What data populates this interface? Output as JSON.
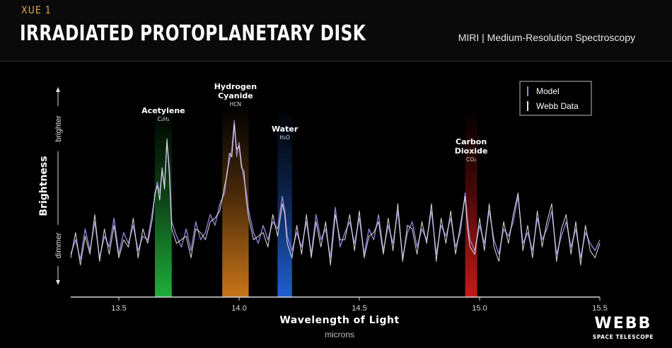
{
  "header": {
    "kicker": "XUE 1",
    "title": "IRRADIATED PROTOPLANETARY DISK",
    "subtitle": "MIRI | Medium-Resolution Spectroscopy"
  },
  "logo": {
    "word": "WEBB",
    "sub": "SPACE TELESCOPE"
  },
  "colors": {
    "background": "#000000",
    "model_line": "#9b82d9",
    "data_line": "#e6e6e6",
    "acetylene_band": "#1fae3a",
    "hcn_band": "#c8741a",
    "water_band": "#1f5fcf",
    "co2_band": "#c71818"
  },
  "chart_data": {
    "type": "line",
    "xlabel": "Wavelength of Light",
    "xunit": "microns",
    "ylabel": "Brightness",
    "y_direction_labels": {
      "top": "brighter",
      "bottom": "dimmer"
    },
    "xlim": [
      13.3,
      15.5
    ],
    "ylim": [
      0,
      1
    ],
    "xticks": [
      13.5,
      14.0,
      14.5,
      15.0,
      15.5
    ],
    "xtick_labels": [
      "13.5",
      "14.0",
      "14.5",
      "15.0",
      "15.5"
    ],
    "grid": false,
    "legend": {
      "position": "top-right",
      "entries": [
        {
          "label": "Model",
          "color": "#9b82d9"
        },
        {
          "label": "Webb Data",
          "color": "#e6e6e6"
        }
      ]
    },
    "bands": [
      {
        "name": "Acetylene",
        "formula": "C₂H₂",
        "x0": 13.65,
        "x1": 13.72,
        "color": "#1fae3a"
      },
      {
        "name": "Hydrogen Cyanide",
        "name_lines": [
          "Hydrogen",
          "Cyanide"
        ],
        "formula": "HCN",
        "x0": 13.93,
        "x1": 14.04,
        "color": "#c8741a"
      },
      {
        "name": "Water",
        "formula": "H₂O",
        "x0": 14.16,
        "x1": 14.22,
        "color": "#1f5fcf"
      },
      {
        "name": "Carbon Dioxide",
        "name_lines": [
          "Carbon",
          "Dioxide"
        ],
        "formula": "CO₂",
        "x0": 14.94,
        "x1": 14.99,
        "color": "#c71818"
      }
    ],
    "series": [
      {
        "name": "Model",
        "color": "#9b82d9",
        "x": [
          13.3,
          13.32,
          13.34,
          13.36,
          13.38,
          13.4,
          13.42,
          13.44,
          13.46,
          13.48,
          13.5,
          13.52,
          13.54,
          13.56,
          13.58,
          13.6,
          13.62,
          13.64,
          13.65,
          13.66,
          13.67,
          13.68,
          13.69,
          13.7,
          13.71,
          13.72,
          13.74,
          13.76,
          13.78,
          13.8,
          13.82,
          13.84,
          13.86,
          13.88,
          13.9,
          13.92,
          13.94,
          13.95,
          13.96,
          13.97,
          13.98,
          13.99,
          14.0,
          14.01,
          14.02,
          14.03,
          14.04,
          14.06,
          14.08,
          14.1,
          14.12,
          14.14,
          14.16,
          14.18,
          14.19,
          14.2,
          14.22,
          14.24,
          14.26,
          14.28,
          14.3,
          14.32,
          14.34,
          14.36,
          14.38,
          14.4,
          14.42,
          14.44,
          14.46,
          14.48,
          14.5,
          14.52,
          14.54,
          14.56,
          14.58,
          14.6,
          14.62,
          14.64,
          14.66,
          14.68,
          14.7,
          14.72,
          14.74,
          14.76,
          14.78,
          14.8,
          14.82,
          14.84,
          14.86,
          14.88,
          14.9,
          14.92,
          14.94,
          14.95,
          14.96,
          14.98,
          15.0,
          15.02,
          15.04,
          15.06,
          15.08,
          15.1,
          15.12,
          15.14,
          15.16,
          15.18,
          15.2,
          15.22,
          15.24,
          15.26,
          15.28,
          15.3,
          15.32,
          15.34,
          15.36,
          15.38,
          15.4,
          15.42,
          15.44,
          15.46,
          15.48,
          15.5
        ],
        "y": [
          0.12,
          0.2,
          0.09,
          0.26,
          0.14,
          0.3,
          0.1,
          0.22,
          0.16,
          0.32,
          0.12,
          0.24,
          0.18,
          0.28,
          0.14,
          0.22,
          0.2,
          0.36,
          0.44,
          0.52,
          0.46,
          0.58,
          0.5,
          0.74,
          0.6,
          0.3,
          0.22,
          0.16,
          0.26,
          0.14,
          0.3,
          0.2,
          0.24,
          0.34,
          0.28,
          0.4,
          0.46,
          0.58,
          0.64,
          0.7,
          0.86,
          0.66,
          0.74,
          0.62,
          0.54,
          0.46,
          0.36,
          0.24,
          0.18,
          0.28,
          0.2,
          0.3,
          0.26,
          0.44,
          0.36,
          0.22,
          0.14,
          0.24,
          0.16,
          0.3,
          0.12,
          0.34,
          0.2,
          0.26,
          0.1,
          0.38,
          0.16,
          0.24,
          0.3,
          0.18,
          0.32,
          0.12,
          0.26,
          0.2,
          0.34,
          0.14,
          0.28,
          0.18,
          0.36,
          0.1,
          0.24,
          0.3,
          0.16,
          0.26,
          0.2,
          0.36,
          0.12,
          0.28,
          0.22,
          0.32,
          0.16,
          0.24,
          0.46,
          0.3,
          0.2,
          0.14,
          0.28,
          0.18,
          0.36,
          0.2,
          0.12,
          0.26,
          0.22,
          0.3,
          0.44,
          0.18,
          0.24,
          0.14,
          0.32,
          0.2,
          0.26,
          0.36,
          0.12,
          0.22,
          0.3,
          0.16,
          0.26,
          0.1,
          0.24,
          0.18,
          0.14,
          0.2
        ]
      },
      {
        "name": "Webb Data",
        "color": "#e6e6e6",
        "x": [
          13.3,
          13.32,
          13.34,
          13.36,
          13.38,
          13.4,
          13.42,
          13.44,
          13.46,
          13.48,
          13.5,
          13.52,
          13.54,
          13.56,
          13.58,
          13.6,
          13.62,
          13.64,
          13.65,
          13.66,
          13.67,
          13.68,
          13.69,
          13.7,
          13.71,
          13.72,
          13.74,
          13.76,
          13.78,
          13.8,
          13.82,
          13.84,
          13.86,
          13.88,
          13.9,
          13.92,
          13.94,
          13.95,
          13.96,
          13.97,
          13.98,
          13.99,
          14.0,
          14.01,
          14.02,
          14.03,
          14.04,
          14.06,
          14.08,
          14.1,
          14.12,
          14.14,
          14.16,
          14.18,
          14.19,
          14.2,
          14.22,
          14.24,
          14.26,
          14.28,
          14.3,
          14.32,
          14.34,
          14.36,
          14.38,
          14.4,
          14.42,
          14.44,
          14.46,
          14.48,
          14.5,
          14.52,
          14.54,
          14.56,
          14.58,
          14.6,
          14.62,
          14.64,
          14.66,
          14.68,
          14.7,
          14.72,
          14.74,
          14.76,
          14.78,
          14.8,
          14.82,
          14.84,
          14.86,
          14.88,
          14.9,
          14.92,
          14.94,
          14.95,
          14.96,
          14.98,
          15.0,
          15.02,
          15.04,
          15.06,
          15.08,
          15.1,
          15.12,
          15.14,
          15.16,
          15.18,
          15.2,
          15.22,
          15.24,
          15.26,
          15.28,
          15.3,
          15.32,
          15.34,
          15.36,
          15.38,
          15.4,
          15.42,
          15.44,
          15.46,
          15.48,
          15.5
        ],
        "y": [
          0.1,
          0.24,
          0.06,
          0.22,
          0.12,
          0.34,
          0.08,
          0.26,
          0.12,
          0.28,
          0.1,
          0.2,
          0.16,
          0.32,
          0.1,
          0.26,
          0.18,
          0.32,
          0.46,
          0.5,
          0.42,
          0.6,
          0.48,
          0.76,
          0.56,
          0.26,
          0.18,
          0.2,
          0.22,
          0.1,
          0.26,
          0.24,
          0.2,
          0.3,
          0.32,
          0.36,
          0.5,
          0.56,
          0.68,
          0.66,
          0.84,
          0.7,
          0.72,
          0.6,
          0.58,
          0.42,
          0.32,
          0.2,
          0.22,
          0.24,
          0.16,
          0.34,
          0.22,
          0.4,
          0.34,
          0.18,
          0.1,
          0.28,
          0.12,
          0.34,
          0.1,
          0.3,
          0.16,
          0.3,
          0.06,
          0.34,
          0.2,
          0.2,
          0.34,
          0.14,
          0.36,
          0.1,
          0.22,
          0.24,
          0.3,
          0.12,
          0.32,
          0.14,
          0.4,
          0.08,
          0.28,
          0.26,
          0.12,
          0.3,
          0.18,
          0.4,
          0.08,
          0.32,
          0.18,
          0.36,
          0.12,
          0.28,
          0.44,
          0.26,
          0.16,
          0.12,
          0.32,
          0.14,
          0.4,
          0.16,
          0.08,
          0.3,
          0.18,
          0.34,
          0.46,
          0.14,
          0.28,
          0.1,
          0.36,
          0.16,
          0.3,
          0.4,
          0.08,
          0.26,
          0.34,
          0.12,
          0.3,
          0.06,
          0.28,
          0.14,
          0.1,
          0.18
        ]
      }
    ]
  }
}
